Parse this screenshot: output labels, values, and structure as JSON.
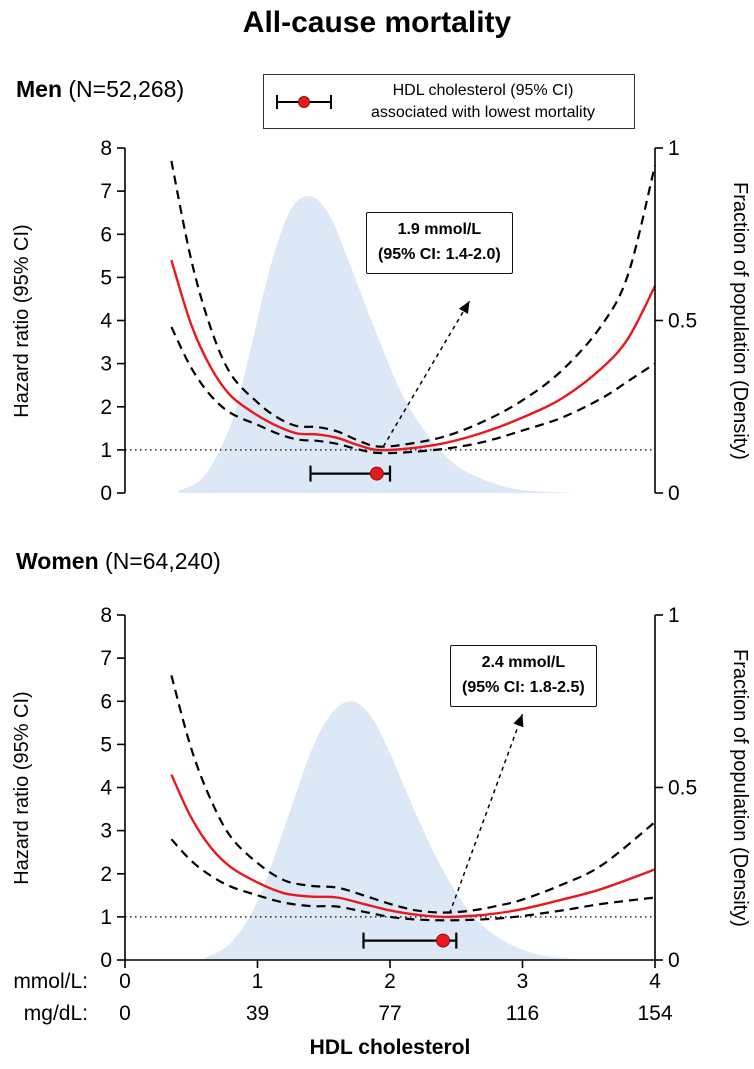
{
  "figure_title": "All-cause mortality",
  "legend": {
    "line1": "HDL cholesterol (95% CI)",
    "line2": "associated with lowest mortality",
    "symbol": "errorbar-with-red-dot-icon"
  },
  "axes": {
    "y_left_label": "Hazard ratio (95% CI)",
    "y_right_label": "Fraction of population (Density)",
    "y_left_ticks": [
      0,
      1,
      2,
      3,
      4,
      5,
      6,
      7,
      8
    ],
    "y_right_ticks": [
      0,
      0.5,
      1
    ],
    "x_label": "HDL cholesterol",
    "x_mmol_prefix": "mmol/L:",
    "x_mgdl_prefix": "mg/dL:",
    "x_mmol_ticks": [
      "0",
      "1",
      "2",
      "3",
      "4"
    ],
    "x_mgdl_ticks": [
      "0",
      "39",
      "77",
      "116",
      "154"
    ],
    "xlim_mmol": [
      0,
      4
    ],
    "ylim_left": [
      0,
      8
    ],
    "ylim_right": [
      0,
      1
    ]
  },
  "colors": {
    "hazard_line": "#e8191c",
    "ci_line": "#000000",
    "density_fill": "#dce8f5",
    "reference_line": "#000000",
    "marker_dot": "#e8191c",
    "marker_dot_edge": "#8f1012",
    "text": "#000000"
  },
  "chart_data": [
    {
      "type": "line",
      "heading_bold": "Men",
      "heading_rest": " (N=52,268)",
      "x_unit": "mmol/L",
      "xlim": [
        0,
        4
      ],
      "ylim_left": [
        0,
        8
      ],
      "ylim_right": [
        0,
        1
      ],
      "show_x_axis": false,
      "reference_hazard_ratio": 1,
      "x_mmol": [
        0.35,
        0.5,
        0.65,
        0.8,
        1.0,
        1.15,
        1.3,
        1.45,
        1.6,
        1.75,
        1.9,
        2.1,
        2.4,
        2.7,
        3.0,
        3.3,
        3.6,
        3.8,
        4.0
      ],
      "series": [
        {
          "name": "hazard-ratio",
          "style": "solid",
          "y": [
            5.4,
            3.9,
            2.9,
            2.25,
            1.8,
            1.55,
            1.38,
            1.36,
            1.28,
            1.12,
            1.0,
            1.02,
            1.15,
            1.4,
            1.75,
            2.2,
            2.9,
            3.6,
            4.8
          ]
        },
        {
          "name": "ci-upper",
          "style": "dashed",
          "y": [
            7.7,
            5.4,
            3.8,
            2.75,
            2.1,
            1.75,
            1.55,
            1.53,
            1.43,
            1.23,
            1.08,
            1.12,
            1.3,
            1.65,
            2.15,
            2.85,
            3.9,
            5.1,
            7.6
          ]
        },
        {
          "name": "ci-lower",
          "style": "dashed",
          "y": [
            3.85,
            2.9,
            2.25,
            1.85,
            1.58,
            1.38,
            1.24,
            1.21,
            1.14,
            1.02,
            0.93,
            0.94,
            1.02,
            1.18,
            1.45,
            1.75,
            2.2,
            2.6,
            3.0
          ]
        }
      ],
      "density": {
        "name": "population-density",
        "axis": "right",
        "x": [
          0.4,
          0.6,
          0.8,
          0.95,
          1.1,
          1.25,
          1.4,
          1.55,
          1.7,
          1.9,
          2.1,
          2.3,
          2.5,
          2.7,
          2.9,
          3.1,
          3.4
        ],
        "y": [
          0.005,
          0.05,
          0.2,
          0.42,
          0.66,
          0.82,
          0.86,
          0.8,
          0.66,
          0.46,
          0.28,
          0.16,
          0.08,
          0.04,
          0.015,
          0.005,
          0.0
        ]
      },
      "optimal": {
        "mmol": 1.9,
        "ci_low_mmol": 1.4,
        "ci_high_mmol": 2.0,
        "marker_hr": 0.45
      },
      "annotation": {
        "line1": "1.9 mmol/L",
        "line2": "(95% CI: 1.4-2.0)",
        "arrow_from": [
          1.95,
          1.08
        ],
        "arrow_to": [
          2.6,
          4.45
        ]
      }
    },
    {
      "type": "line",
      "heading_bold": "Women",
      "heading_rest": " (N=64,240)",
      "x_unit": "mmol/L",
      "xlim": [
        0,
        4
      ],
      "ylim_left": [
        0,
        8
      ],
      "ylim_right": [
        0,
        1
      ],
      "show_x_axis": true,
      "reference_hazard_ratio": 1,
      "x_mmol": [
        0.35,
        0.5,
        0.65,
        0.8,
        1.0,
        1.2,
        1.4,
        1.6,
        1.8,
        2.0,
        2.2,
        2.4,
        2.6,
        2.8,
        3.0,
        3.3,
        3.6,
        4.0
      ],
      "series": [
        {
          "name": "hazard-ratio",
          "style": "solid",
          "y": [
            4.3,
            3.3,
            2.6,
            2.15,
            1.8,
            1.55,
            1.47,
            1.45,
            1.3,
            1.15,
            1.05,
            1.0,
            1.02,
            1.08,
            1.18,
            1.4,
            1.65,
            2.1
          ]
        },
        {
          "name": "ci-upper",
          "style": "dashed",
          "y": [
            6.6,
            4.9,
            3.7,
            2.85,
            2.25,
            1.85,
            1.72,
            1.68,
            1.5,
            1.3,
            1.15,
            1.1,
            1.14,
            1.25,
            1.4,
            1.75,
            2.2,
            3.2
          ]
        },
        {
          "name": "ci-lower",
          "style": "dashed",
          "y": [
            2.8,
            2.3,
            1.95,
            1.7,
            1.5,
            1.33,
            1.25,
            1.24,
            1.12,
            1.0,
            0.94,
            0.92,
            0.93,
            0.96,
            1.02,
            1.15,
            1.3,
            1.45
          ]
        }
      ],
      "density": {
        "name": "population-density",
        "axis": "right",
        "x": [
          0.6,
          0.8,
          1.0,
          1.2,
          1.4,
          1.55,
          1.7,
          1.85,
          2.0,
          2.2,
          2.4,
          2.6,
          2.8,
          3.0,
          3.2,
          3.5
        ],
        "y": [
          0.005,
          0.05,
          0.17,
          0.38,
          0.6,
          0.71,
          0.75,
          0.71,
          0.6,
          0.42,
          0.26,
          0.14,
          0.07,
          0.03,
          0.01,
          0.0
        ]
      },
      "optimal": {
        "mmol": 2.4,
        "ci_low_mmol": 1.8,
        "ci_high_mmol": 2.5,
        "marker_hr": 0.45
      },
      "annotation": {
        "line1": "2.4 mmol/L",
        "line2": "(95% CI: 1.8-2.5)",
        "arrow_from": [
          2.45,
          1.08
        ],
        "arrow_to": [
          3.0,
          5.7
        ]
      }
    }
  ]
}
